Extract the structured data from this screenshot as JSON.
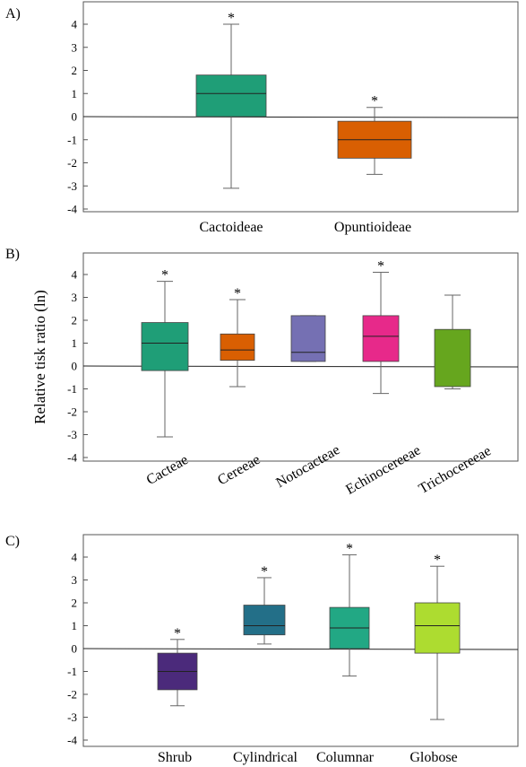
{
  "chart_data": [
    {
      "type": "box",
      "panel_label": "A)",
      "ylabel": "",
      "ylim": [
        -4,
        4.5
      ],
      "yticks": [
        "4",
        "3",
        "2",
        "1",
        "0",
        "-1",
        "-2",
        "-3",
        "-4"
      ],
      "categories": [
        "Cactoideae",
        "Opuntioideae"
      ],
      "boxes": [
        {
          "category": "Cactoideae",
          "min": -3.1,
          "q1": 0.0,
          "median": 1.0,
          "q3": 1.8,
          "max": 4.0,
          "marked": true,
          "color": "#1f9e77"
        },
        {
          "category": "Opuntioideae",
          "min": -2.5,
          "q1": -1.8,
          "median": -1.0,
          "q3": -0.2,
          "max": 0.4,
          "marked": true,
          "color": "#d95f02"
        }
      ],
      "marker_symbol": "*",
      "grid": false,
      "zero_line": true
    },
    {
      "type": "box",
      "panel_label": "B)",
      "ylabel": "Relative tisk ratio (ln)",
      "ylim": [
        -4,
        4.5
      ],
      "yticks": [
        "4",
        "3",
        "2",
        "1",
        "0",
        "-1",
        "-2",
        "-3",
        "-4"
      ],
      "categories": [
        "Cacteae",
        "Cereeae",
        "Notocacteae",
        "Echinocereeae",
        "Trichocereeae"
      ],
      "boxes": [
        {
          "category": "Cacteae",
          "min": -3.1,
          "q1": -0.2,
          "median": 1.0,
          "q3": 1.9,
          "max": 3.7,
          "marked": true,
          "color": "#1f9e77"
        },
        {
          "category": "Cereeae",
          "min": -0.9,
          "q1": 0.25,
          "median": 0.7,
          "q3": 1.4,
          "max": 2.9,
          "marked": true,
          "color": "#d95f02"
        },
        {
          "category": "Notocacteae",
          "min": 0.2,
          "q1": 0.2,
          "median": 0.6,
          "q3": 2.2,
          "max": 2.2,
          "marked": false,
          "color": "#7570b3"
        },
        {
          "category": "Echinocereeae",
          "min": -1.2,
          "q1": 0.2,
          "median": 1.3,
          "q3": 2.2,
          "max": 4.1,
          "marked": true,
          "color": "#e7298a"
        },
        {
          "category": "Trichocereeae",
          "min": -1.0,
          "q1": -0.9,
          "median": null,
          "q3": 1.6,
          "max": 3.1,
          "marked": false,
          "color": "#66a61e"
        }
      ],
      "marker_symbol": "*",
      "grid": false,
      "zero_line": true
    },
    {
      "type": "box",
      "panel_label": "C)",
      "ylabel": "",
      "ylim": [
        -4,
        4.5
      ],
      "yticks": [
        "4",
        "3",
        "2",
        "1",
        "0",
        "-1",
        "-2",
        "-3",
        "-4"
      ],
      "categories": [
        "Shrub",
        "Cylindrical",
        "Columnar",
        "Globose"
      ],
      "boxes": [
        {
          "category": "Shrub",
          "min": -2.5,
          "q1": -1.8,
          "median": -1.0,
          "q3": -0.2,
          "max": 0.4,
          "marked": true,
          "color": "#4b2a7b"
        },
        {
          "category": "Cylindrical",
          "min": 0.2,
          "q1": 0.6,
          "median": 1.0,
          "q3": 1.9,
          "max": 3.1,
          "marked": true,
          "color": "#236f88"
        },
        {
          "category": "Columnar",
          "min": -1.2,
          "q1": 0.0,
          "median": 0.9,
          "q3": 1.8,
          "max": 4.1,
          "marked": true,
          "color": "#22a884"
        },
        {
          "category": "Globose",
          "min": -3.1,
          "q1": -0.2,
          "median": 1.0,
          "q3": 2.0,
          "max": 3.6,
          "marked": true,
          "color": "#addc30"
        }
      ],
      "marker_symbol": "*",
      "grid": false,
      "zero_line": true
    }
  ]
}
